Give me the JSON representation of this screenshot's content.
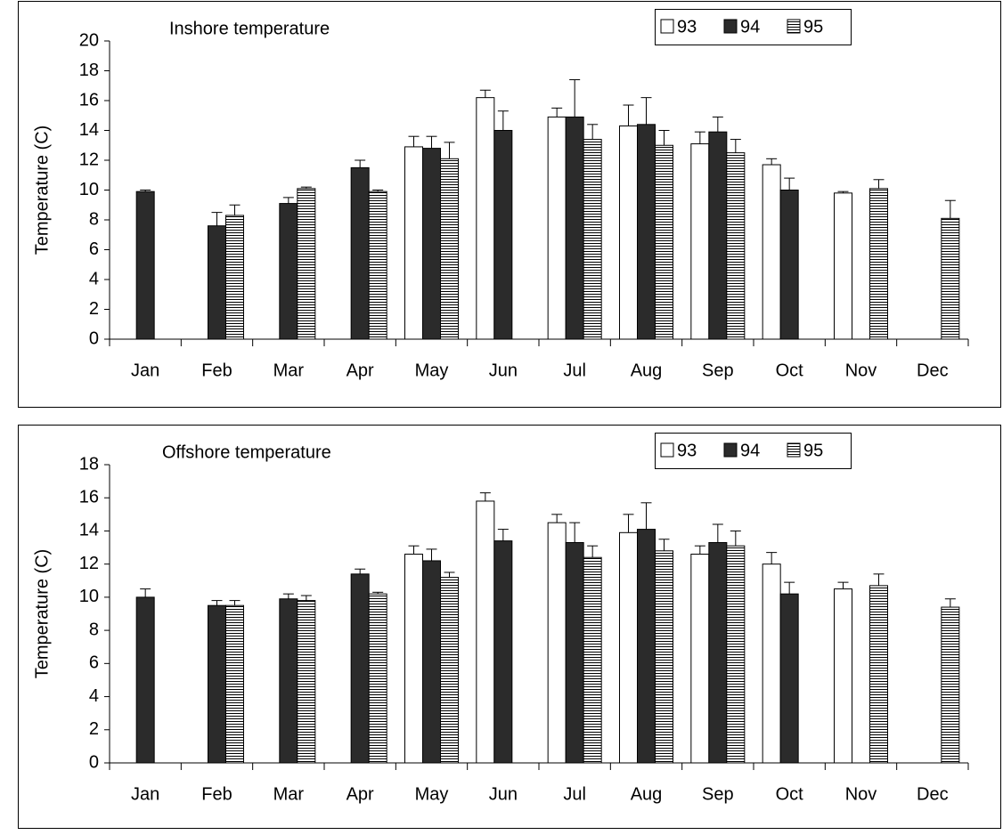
{
  "chart_data": [
    {
      "type": "bar",
      "title": "Inshore temperature",
      "ylabel": "Temperature (C)",
      "categories": [
        "Jan",
        "Feb",
        "Mar",
        "Apr",
        "May",
        "Jun",
        "Jul",
        "Aug",
        "Sep",
        "Oct",
        "Nov",
        "Dec"
      ],
      "series": [
        {
          "name": "93",
          "color": "#ffffff",
          "values": [
            null,
            null,
            null,
            null,
            12.9,
            16.2,
            14.9,
            14.3,
            13.1,
            11.7,
            9.8,
            null
          ],
          "errors": [
            null,
            null,
            null,
            null,
            0.7,
            0.5,
            0.6,
            1.4,
            0.8,
            0.4,
            0.1,
            null
          ]
        },
        {
          "name": "94",
          "color": "#2b2b2b",
          "values": [
            9.9,
            7.6,
            9.1,
            11.5,
            12.8,
            14.0,
            14.9,
            14.4,
            13.9,
            10.0,
            null,
            null
          ],
          "errors": [
            0.1,
            0.9,
            0.4,
            0.5,
            0.8,
            1.3,
            2.5,
            1.8,
            1.0,
            0.8,
            null,
            null
          ]
        },
        {
          "name": "95",
          "color": "#ffffff",
          "hatch": "horizontal",
          "values": [
            null,
            8.3,
            10.1,
            9.9,
            12.1,
            null,
            13.4,
            13.0,
            12.5,
            null,
            10.1,
            8.1
          ],
          "errors": [
            null,
            0.7,
            0.1,
            0.1,
            1.1,
            null,
            1.0,
            1.0,
            0.9,
            null,
            0.6,
            1.2
          ]
        }
      ],
      "ylim": [
        0,
        20
      ],
      "yticks": [
        0,
        2,
        4,
        6,
        8,
        10,
        12,
        14,
        16,
        18,
        20
      ],
      "legend": "top-right"
    },
    {
      "type": "bar",
      "title": "Offshore temperature",
      "ylabel": "Temperature (C)",
      "categories": [
        "Jan",
        "Feb",
        "Mar",
        "Apr",
        "May",
        "Jun",
        "Jul",
        "Aug",
        "Sep",
        "Oct",
        "Nov",
        "Dec"
      ],
      "series": [
        {
          "name": "93",
          "color": "#ffffff",
          "values": [
            null,
            null,
            null,
            null,
            12.6,
            15.8,
            14.5,
            13.9,
            12.6,
            12.0,
            10.5,
            null
          ],
          "errors": [
            null,
            null,
            null,
            null,
            0.5,
            0.5,
            0.5,
            1.1,
            0.5,
            0.7,
            0.4,
            null
          ]
        },
        {
          "name": "94",
          "color": "#2b2b2b",
          "values": [
            10.0,
            9.5,
            9.9,
            11.4,
            12.2,
            13.4,
            13.3,
            14.1,
            13.3,
            10.2,
            null,
            null
          ],
          "errors": [
            0.5,
            0.3,
            0.3,
            0.3,
            0.7,
            0.7,
            1.2,
            1.6,
            1.1,
            0.7,
            null,
            null
          ]
        },
        {
          "name": "95",
          "color": "#ffffff",
          "hatch": "horizontal",
          "values": [
            null,
            9.5,
            9.8,
            10.2,
            11.2,
            null,
            12.4,
            12.8,
            13.1,
            null,
            10.7,
            9.4
          ],
          "errors": [
            null,
            0.3,
            0.3,
            0.1,
            0.3,
            null,
            0.7,
            0.7,
            0.9,
            null,
            0.7,
            0.5
          ]
        }
      ],
      "ylim": [
        0,
        18
      ],
      "yticks": [
        0,
        2,
        4,
        6,
        8,
        10,
        12,
        14,
        16,
        18
      ],
      "legend": "top-right"
    }
  ]
}
